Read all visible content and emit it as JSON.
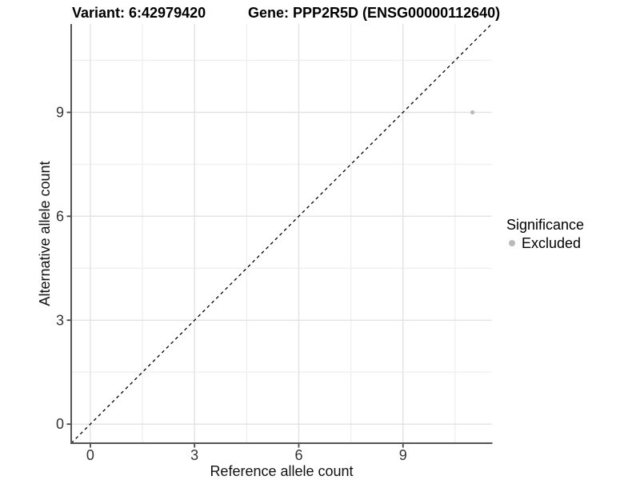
{
  "header": {
    "variant_title": "Variant: 6:42979420",
    "gene_title": "Gene: PPP2R5D (ENSG00000112640)"
  },
  "axes": {
    "x_label": "Reference allele count",
    "y_label": "Alternative allele count"
  },
  "legend": {
    "title": "Significance",
    "items": [
      {
        "label": "Excluded",
        "color": "#b9b9b9"
      }
    ]
  },
  "chart_data": {
    "type": "scatter",
    "title": "Variant: 6:42979420   Gene: PPP2R5D (ENSG00000112640)",
    "xlabel": "Reference allele count",
    "ylabel": "Alternative allele count",
    "xlim": [
      -0.55,
      11.55
    ],
    "ylim": [
      -0.55,
      11.55
    ],
    "xticks": [
      0,
      3,
      6,
      9
    ],
    "yticks": [
      0,
      3,
      6,
      9
    ],
    "x_minor_ticks": [
      1.5,
      4.5,
      7.5,
      10.5
    ],
    "y_minor_ticks": [
      1.5,
      4.5,
      7.5,
      10.5
    ],
    "grid": true,
    "legend_position": "right",
    "series": [
      {
        "name": "Excluded",
        "color": "#b9b9b9",
        "points": [
          {
            "x": 11,
            "y": 9
          }
        ]
      }
    ],
    "reference_line": {
      "kind": "identity",
      "style": "dashed",
      "color": "#000000",
      "from": [
        -0.55,
        -0.55
      ],
      "to": [
        11.55,
        11.55
      ]
    },
    "colors": {
      "grid_major": "#e2e2e2",
      "grid_minor": "#efefef",
      "axis_line": "#555555",
      "tick_mark": "#474747",
      "tick_label": "#333333",
      "point": "#b9b9b9"
    }
  }
}
